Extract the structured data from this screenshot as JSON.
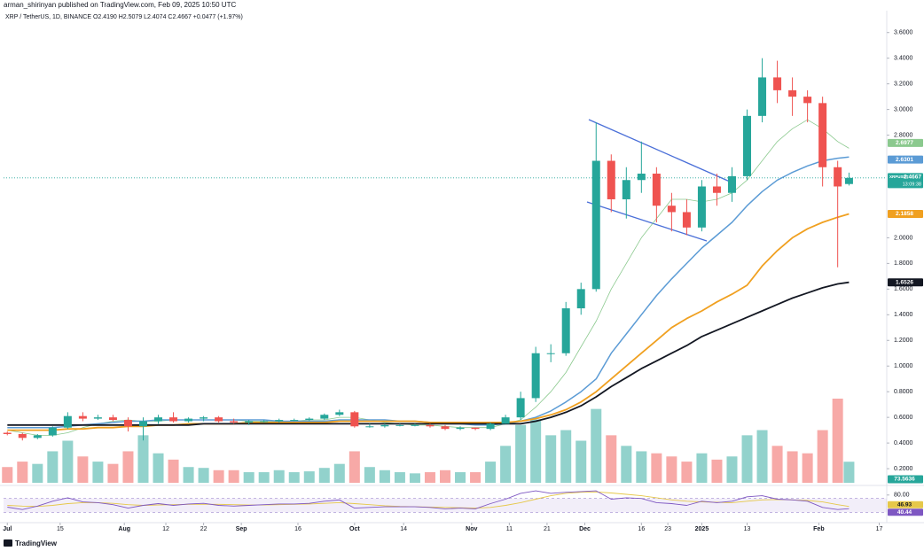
{
  "chart_data": {
    "type": "candlestick",
    "publisher": "arman_shirinyan published on TradingView.com, Feb 09, 2025 10:50 UTC",
    "legend": "XRP / TetherUS, 1D, BINANCE  O2.4190 H2.5079 L2.4074 C2.4667 +0.0477 (+1.97%)",
    "footer": "TradingView",
    "symbol": "XRPUSDT",
    "countdown": "13:09:38",
    "up_color": "#26a69a",
    "down_color": "#ef5350",
    "x": [
      "2024-07-01",
      "2024-07-05",
      "2024-07-09",
      "2024-07-13",
      "2024-07-17",
      "2024-07-21",
      "2024-07-25",
      "2024-07-29",
      "2024-08-02",
      "2024-08-06",
      "2024-08-10",
      "2024-08-14",
      "2024-08-18",
      "2024-08-22",
      "2024-08-26",
      "2024-08-30",
      "2024-09-03",
      "2024-09-07",
      "2024-09-11",
      "2024-09-15",
      "2024-09-19",
      "2024-09-23",
      "2024-09-27",
      "2024-10-01",
      "2024-10-05",
      "2024-10-09",
      "2024-10-13",
      "2024-10-17",
      "2024-10-21",
      "2024-10-25",
      "2024-10-29",
      "2024-11-02",
      "2024-11-06",
      "2024-11-10",
      "2024-11-14",
      "2024-11-18",
      "2024-11-22",
      "2024-11-26",
      "2024-11-30",
      "2024-12-04",
      "2024-12-08",
      "2024-12-12",
      "2024-12-16",
      "2024-12-20",
      "2024-12-24",
      "2024-12-28",
      "2025-01-01",
      "2025-01-05",
      "2025-01-09",
      "2025-01-13",
      "2025-01-17",
      "2025-01-21",
      "2025-01-25",
      "2025-01-29",
      "2025-02-02",
      "2025-02-06",
      "2025-02-09"
    ],
    "open": [
      0.48,
      0.47,
      0.44,
      0.46,
      0.52,
      0.61,
      0.59,
      0.6,
      0.58,
      0.53,
      0.57,
      0.6,
      0.57,
      0.59,
      0.6,
      0.57,
      0.56,
      0.57,
      0.57,
      0.58,
      0.58,
      0.59,
      0.62,
      0.64,
      0.53,
      0.53,
      0.54,
      0.54,
      0.54,
      0.53,
      0.51,
      0.52,
      0.51,
      0.55,
      0.6,
      0.75,
      1.1,
      1.1,
      1.45,
      1.6,
      2.6,
      2.3,
      2.45,
      2.5,
      2.25,
      2.2,
      2.08,
      2.4,
      2.35,
      2.48,
      2.95,
      3.25,
      3.15,
      3.1,
      3.05,
      2.55,
      2.419
    ],
    "high": [
      0.49,
      0.48,
      0.47,
      0.53,
      0.64,
      0.64,
      0.62,
      0.62,
      0.6,
      0.6,
      0.62,
      0.64,
      0.6,
      0.61,
      0.61,
      0.59,
      0.58,
      0.58,
      0.59,
      0.59,
      0.6,
      0.63,
      0.66,
      0.65,
      0.55,
      0.55,
      0.55,
      0.55,
      0.55,
      0.54,
      0.53,
      0.52,
      0.56,
      0.62,
      0.8,
      1.15,
      1.17,
      1.5,
      1.65,
      2.9,
      2.65,
      2.55,
      2.75,
      2.55,
      2.35,
      2.3,
      2.45,
      2.5,
      2.55,
      3.0,
      3.4,
      3.38,
      3.25,
      3.15,
      3.1,
      2.6,
      2.5079
    ],
    "low": [
      0.46,
      0.42,
      0.43,
      0.45,
      0.51,
      0.57,
      0.58,
      0.57,
      0.49,
      0.42,
      0.55,
      0.56,
      0.56,
      0.57,
      0.56,
      0.55,
      0.54,
      0.56,
      0.56,
      0.57,
      0.57,
      0.58,
      0.61,
      0.52,
      0.52,
      0.52,
      0.53,
      0.53,
      0.52,
      0.5,
      0.5,
      0.5,
      0.5,
      0.55,
      0.58,
      0.72,
      1.03,
      1.08,
      1.4,
      1.58,
      2.2,
      2.15,
      2.35,
      2.12,
      2.05,
      2.02,
      2.05,
      2.25,
      2.28,
      2.45,
      2.9,
      3.05,
      2.95,
      2.9,
      2.4,
      1.77,
      2.4074
    ],
    "close": [
      0.47,
      0.44,
      0.46,
      0.52,
      0.61,
      0.59,
      0.6,
      0.58,
      0.53,
      0.57,
      0.6,
      0.57,
      0.59,
      0.6,
      0.57,
      0.56,
      0.57,
      0.57,
      0.58,
      0.58,
      0.59,
      0.62,
      0.64,
      0.53,
      0.53,
      0.54,
      0.54,
      0.54,
      0.53,
      0.51,
      0.52,
      0.51,
      0.55,
      0.6,
      0.75,
      1.1,
      1.1,
      1.45,
      1.6,
      2.6,
      2.3,
      2.45,
      2.5,
      2.25,
      2.2,
      2.08,
      2.4,
      2.35,
      2.48,
      2.95,
      3.25,
      3.15,
      3.1,
      3.05,
      2.55,
      2.4,
      2.4667
    ],
    "volume": [
      55,
      74,
      66,
      110,
      147,
      92,
      74,
      66,
      110,
      166,
      103,
      81,
      55,
      52,
      44,
      44,
      37,
      37,
      44,
      37,
      40,
      52,
      66,
      110,
      55,
      44,
      37,
      33,
      37,
      44,
      37,
      37,
      74,
      129,
      202,
      221,
      166,
      184,
      147,
      258,
      166,
      129,
      110,
      103,
      92,
      74,
      103,
      81,
      92,
      166,
      184,
      129,
      110,
      103,
      184,
      294,
      73.5636
    ],
    "overlays": [
      {
        "color": "#8bc98e",
        "values": [
          0.5,
          0.48,
          0.46,
          0.46,
          0.48,
          0.52,
          0.55,
          0.57,
          0.58,
          0.57,
          0.57,
          0.58,
          0.58,
          0.58,
          0.58,
          0.58,
          0.57,
          0.57,
          0.57,
          0.57,
          0.58,
          0.58,
          0.6,
          0.6,
          0.58,
          0.56,
          0.55,
          0.54,
          0.54,
          0.53,
          0.52,
          0.52,
          0.52,
          0.55,
          0.58,
          0.68,
          0.8,
          0.95,
          1.15,
          1.35,
          1.6,
          1.8,
          2.0,
          2.15,
          2.3,
          2.3,
          2.28,
          2.3,
          2.35,
          2.45,
          2.6,
          2.75,
          2.85,
          2.92,
          2.85,
          2.75,
          2.6977
        ]
      },
      {
        "color": "#5b9bd5",
        "values": [
          0.52,
          0.52,
          0.52,
          0.52,
          0.53,
          0.54,
          0.55,
          0.56,
          0.57,
          0.57,
          0.58,
          0.58,
          0.58,
          0.58,
          0.58,
          0.58,
          0.58,
          0.58,
          0.57,
          0.57,
          0.57,
          0.57,
          0.58,
          0.58,
          0.58,
          0.58,
          0.57,
          0.57,
          0.56,
          0.55,
          0.55,
          0.54,
          0.54,
          0.55,
          0.57,
          0.6,
          0.65,
          0.72,
          0.8,
          0.9,
          1.1,
          1.25,
          1.4,
          1.55,
          1.68,
          1.8,
          1.92,
          2.02,
          2.12,
          2.25,
          2.36,
          2.45,
          2.51,
          2.56,
          2.6,
          2.62,
          2.6301
        ]
      },
      {
        "color": "#f0a020",
        "values": [
          0.5,
          0.5,
          0.5,
          0.5,
          0.51,
          0.51,
          0.52,
          0.52,
          0.53,
          0.53,
          0.54,
          0.54,
          0.55,
          0.55,
          0.55,
          0.55,
          0.56,
          0.56,
          0.56,
          0.56,
          0.56,
          0.56,
          0.57,
          0.57,
          0.57,
          0.57,
          0.57,
          0.57,
          0.56,
          0.56,
          0.56,
          0.56,
          0.56,
          0.56,
          0.57,
          0.59,
          0.62,
          0.66,
          0.72,
          0.8,
          0.9,
          1.0,
          1.1,
          1.2,
          1.3,
          1.37,
          1.43,
          1.5,
          1.56,
          1.63,
          1.78,
          1.9,
          2.0,
          2.07,
          2.12,
          2.16,
          2.1858
        ]
      },
      {
        "color": "#131722",
        "values": [
          0.54,
          0.54,
          0.54,
          0.54,
          0.54,
          0.54,
          0.54,
          0.54,
          0.54,
          0.54,
          0.54,
          0.54,
          0.54,
          0.55,
          0.55,
          0.55,
          0.55,
          0.55,
          0.55,
          0.55,
          0.55,
          0.55,
          0.55,
          0.55,
          0.55,
          0.55,
          0.55,
          0.55,
          0.55,
          0.55,
          0.55,
          0.55,
          0.55,
          0.55,
          0.55,
          0.57,
          0.6,
          0.64,
          0.69,
          0.76,
          0.84,
          0.91,
          0.98,
          1.04,
          1.1,
          1.16,
          1.23,
          1.28,
          1.33,
          1.38,
          1.43,
          1.48,
          1.53,
          1.57,
          1.61,
          1.64,
          1.6526
        ]
      }
    ],
    "xlim": [
      "2024-06-30",
      "2025-02-19"
    ],
    "xticks": [
      {
        "value": "2024-07-01",
        "label": "Jul"
      },
      {
        "value": "2024-07-15",
        "label": "15"
      },
      {
        "value": "2024-08-01",
        "label": "Aug"
      },
      {
        "value": "2024-08-12",
        "label": "12"
      },
      {
        "value": "2024-08-22",
        "label": "22"
      },
      {
        "value": "2024-09-01",
        "label": "Sep"
      },
      {
        "value": "2024-09-16",
        "label": "16"
      },
      {
        "value": "2024-10-01",
        "label": "Oct"
      },
      {
        "value": "2024-10-14",
        "label": "14"
      },
      {
        "value": "2024-11-01",
        "label": "Nov"
      },
      {
        "value": "2024-11-11",
        "label": "11"
      },
      {
        "value": "2024-11-21",
        "label": "21"
      },
      {
        "value": "2024-12-01",
        "label": "Dec"
      },
      {
        "value": "2024-12-16",
        "label": "16"
      },
      {
        "value": "2024-12-23",
        "label": "23"
      },
      {
        "value": "2025-01-01",
        "label": "2025"
      },
      {
        "value": "2025-01-13",
        "label": "13"
      },
      {
        "value": "2025-02-01",
        "label": "Feb"
      },
      {
        "value": "2025-02-17",
        "label": "17"
      }
    ],
    "ylim": [
      0.09,
      3.75
    ],
    "yticks": [
      {
        "value": 0.2,
        "label": "0.2000"
      },
      {
        "value": 0.4,
        "label": "0.4000"
      },
      {
        "value": 0.6,
        "label": "0.6000"
      },
      {
        "value": 0.8,
        "label": "0.8000"
      },
      {
        "value": 1.0,
        "label": "1.0000"
      },
      {
        "value": 1.2,
        "label": "1.2000"
      },
      {
        "value": 1.4,
        "label": "1.4000"
      },
      {
        "value": 1.6,
        "label": "1.6000"
      },
      {
        "value": 1.8,
        "label": "1.8000"
      },
      {
        "value": 2.0,
        "label": "2.0000"
      },
      {
        "value": 2.8,
        "label": "2.8000"
      },
      {
        "value": 3.0,
        "label": "3.0000"
      },
      {
        "value": 3.2,
        "label": "3.2000"
      },
      {
        "value": 3.4,
        "label": "3.4000"
      },
      {
        "value": 3.6,
        "label": "3.6000"
      }
    ],
    "rsi": {
      "color": "#7e57c2",
      "ma_color": "#e6c84a",
      "values": [
        45,
        38,
        48,
        62,
        72,
        60,
        58,
        52,
        42,
        50,
        55,
        50,
        54,
        56,
        50,
        48,
        50,
        52,
        54,
        54,
        56,
        62,
        66,
        42,
        44,
        46,
        46,
        46,
        44,
        40,
        42,
        40,
        55,
        68,
        85,
        92,
        85,
        88,
        90,
        92,
        68,
        72,
        70,
        58,
        55,
        50,
        62,
        58,
        62,
        75,
        78,
        68,
        66,
        62,
        44,
        38,
        40.44
      ],
      "ma_values": [
        50,
        48,
        47,
        50,
        55,
        58,
        58,
        56,
        52,
        50,
        51,
        52,
        53,
        53,
        53,
        52,
        51,
        51,
        52,
        53,
        54,
        56,
        58,
        55,
        52,
        49,
        47,
        46,
        45,
        44,
        43,
        42,
        44,
        50,
        58,
        68,
        78,
        85,
        88,
        89,
        86,
        82,
        78,
        72,
        66,
        62,
        60,
        59,
        58,
        62,
        66,
        67,
        66,
        64,
        60,
        52,
        46.93
      ],
      "ylim": [
        0,
        100
      ],
      "yticks": [
        {
          "value": 80,
          "label": "80.00"
        }
      ],
      "band": [
        30,
        70
      ]
    }
  }
}
